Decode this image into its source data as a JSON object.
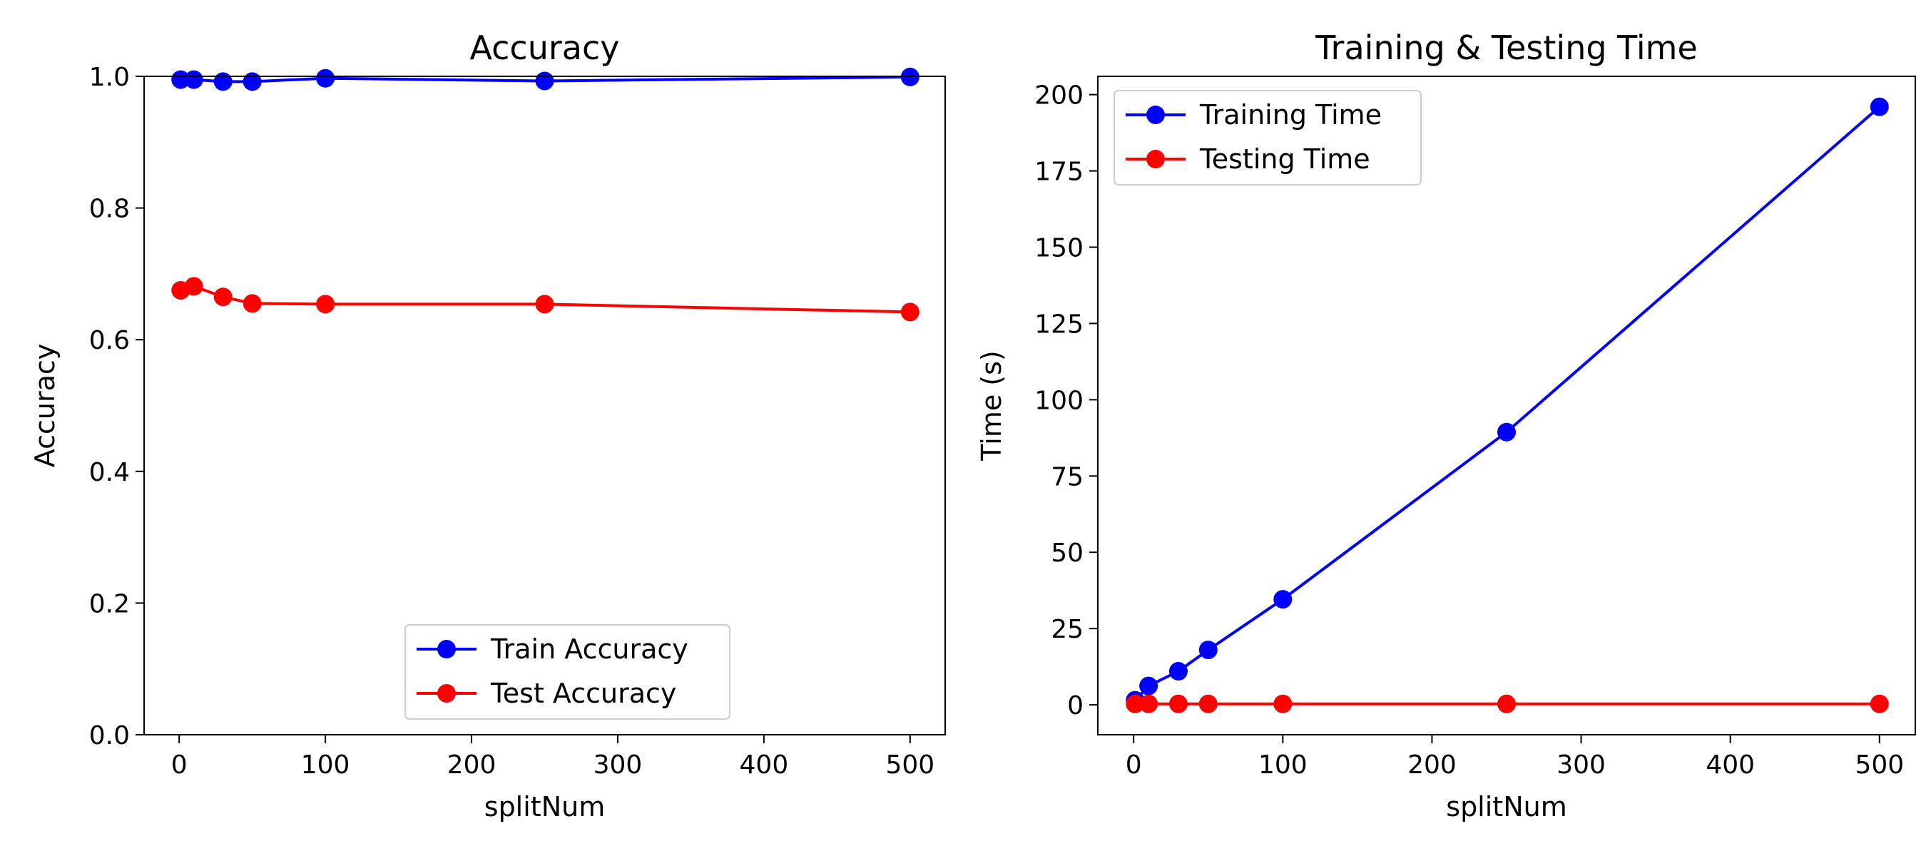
{
  "chart_data": [
    {
      "type": "line",
      "title": "Accuracy",
      "xlabel": "splitNum",
      "ylabel": "Accuracy",
      "xlim": [
        -24,
        524
      ],
      "ylim": [
        0.0,
        1.0
      ],
      "xticks": [
        0,
        100,
        200,
        300,
        400,
        500
      ],
      "yticks": [
        0.0,
        0.2,
        0.4,
        0.6,
        0.8,
        1.0
      ],
      "xtick_labels": [
        "0",
        "100",
        "200",
        "300",
        "400",
        "500"
      ],
      "ytick_labels": [
        "0.0",
        "0.2",
        "0.4",
        "0.6",
        "0.8",
        "1.0"
      ],
      "legend_position": "lower-center",
      "grid": false,
      "x": [
        1,
        10,
        30,
        50,
        100,
        250,
        500
      ],
      "series": [
        {
          "name": "Train Accuracy",
          "color": "#0000ff",
          "values": [
            0.995,
            0.995,
            0.992,
            0.992,
            0.997,
            0.993,
            0.999
          ]
        },
        {
          "name": "Test Accuracy",
          "color": "#ff0000",
          "values": [
            0.675,
            0.681,
            0.665,
            0.655,
            0.654,
            0.654,
            0.642
          ]
        }
      ]
    },
    {
      "type": "line",
      "title": "Training & Testing Time",
      "xlabel": "splitNum",
      "ylabel": "Time (s)",
      "xlim": [
        -24,
        524
      ],
      "ylim": [
        -9.8,
        206
      ],
      "xticks": [
        0,
        100,
        200,
        300,
        400,
        500
      ],
      "yticks": [
        0,
        25,
        50,
        75,
        100,
        125,
        150,
        175,
        200
      ],
      "xtick_labels": [
        "0",
        "100",
        "200",
        "300",
        "400",
        "500"
      ],
      "ytick_labels": [
        "0",
        "25",
        "50",
        "75",
        "100",
        "125",
        "150",
        "175",
        "200"
      ],
      "legend_position": "upper-left",
      "grid": false,
      "x": [
        1,
        10,
        30,
        50,
        100,
        250,
        500
      ],
      "series": [
        {
          "name": "Training Time",
          "color": "#0000ff",
          "values": [
            1.5,
            6.2,
            11.0,
            18.0,
            34.6,
            89.4,
            196.0
          ]
        },
        {
          "name": "Testing Time",
          "color": "#ff0000",
          "values": [
            0.3,
            0.3,
            0.3,
            0.3,
            0.3,
            0.3,
            0.3
          ]
        }
      ]
    }
  ]
}
